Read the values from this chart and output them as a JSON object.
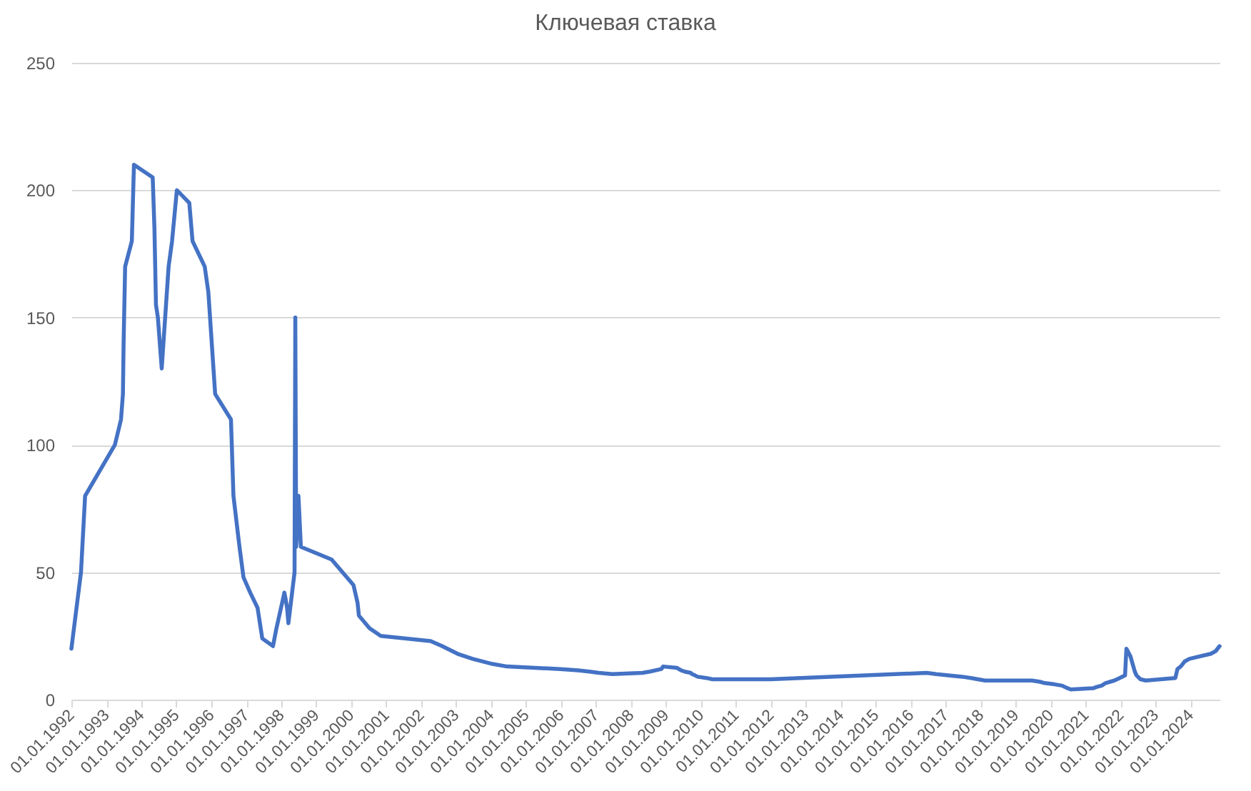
{
  "chart_data": {
    "type": "line",
    "title": "Ключевая ставка",
    "x": [
      "1992-01-01",
      "1992-04-10",
      "1992-05-23",
      "1993-03-30",
      "1993-06-02",
      "1993-06-22",
      "1993-06-29",
      "1993-07-15",
      "1993-09-23",
      "1993-10-15",
      "1994-04-29",
      "1994-05-17",
      "1994-06-02",
      "1994-06-22",
      "1994-08-01",
      "1994-10-12",
      "1994-11-17",
      "1995-01-06",
      "1995-05-16",
      "1995-06-19",
      "1995-10-24",
      "1995-12-01",
      "1996-02-10",
      "1996-07-24",
      "1996-08-19",
      "1996-10-21",
      "1996-12-02",
      "1997-02-10",
      "1997-04-28",
      "1997-06-16",
      "1997-10-06",
      "1997-11-11",
      "1998-02-02",
      "1998-02-17",
      "1998-03-02",
      "1998-03-16",
      "1998-05-19",
      "1998-05-27",
      "1998-06-05",
      "1998-06-29",
      "1998-07-24",
      "1999-06-10",
      "2000-01-24",
      "2000-03-07",
      "2000-03-21",
      "2000-07-10",
      "2000-11-04",
      "2002-04-09",
      "2002-08-07",
      "2003-01-15",
      "2003-06-21",
      "2004-01-15",
      "2004-06-15",
      "2005-12-26",
      "2006-06-26",
      "2006-10-23",
      "2007-01-29",
      "2007-06-19",
      "2008-04-29",
      "2008-07-14",
      "2008-11-12",
      "2008-12-01",
      "2009-04-24",
      "2009-05-14",
      "2009-06-05",
      "2009-07-13",
      "2009-09-15",
      "2009-09-30",
      "2009-10-30",
      "2009-11-25",
      "2010-02-24",
      "2010-04-30",
      "2011-12-26",
      "2016-06-14",
      "2016-09-19",
      "2017-06-19",
      "2017-09-18",
      "2018-02-12",
      "2019-06-17",
      "2019-09-09",
      "2019-10-28",
      "2020-02-10",
      "2020-04-27",
      "2020-06-22",
      "2020-07-27",
      "2021-03-22",
      "2021-04-26",
      "2021-06-15",
      "2021-07-26",
      "2021-10-25",
      "2021-12-20",
      "2022-02-14",
      "2022-02-28",
      "2022-04-11",
      "2022-05-04",
      "2022-05-27",
      "2022-06-14",
      "2022-07-25",
      "2022-09-19",
      "2023-07-24",
      "2023-08-15",
      "2023-09-18",
      "2023-10-30",
      "2023-12-18",
      "2024-07-29",
      "2024-09-16",
      "2024-10-28"
    ],
    "series": [
      {
        "color": "#4472c4",
        "values": [
          20,
          50,
          80,
          100,
          110,
          120,
          140,
          170,
          180,
          210,
          205,
          185,
          155,
          150,
          130,
          170,
          180,
          200,
          195,
          180,
          170,
          160,
          120,
          110,
          80,
          60,
          48,
          42,
          36,
          24,
          21,
          28,
          42,
          39,
          36,
          30,
          50,
          150,
          60,
          80,
          60,
          55,
          45,
          38,
          33,
          28,
          25,
          23,
          21,
          18,
          16,
          14,
          13,
          12,
          11.5,
          11,
          10.5,
          10,
          10.5,
          11,
          12,
          13,
          12.5,
          12,
          11.5,
          11,
          10.5,
          10,
          9.5,
          9,
          8.5,
          8,
          8,
          10.5,
          10,
          9,
          8.5,
          7.5,
          7.5,
          7,
          6.5,
          6,
          5.5,
          4.5,
          4,
          4.5,
          5,
          5.5,
          6.5,
          7.5,
          8.5,
          9.5,
          20,
          17,
          14,
          11,
          9.5,
          8,
          7.5,
          8.5,
          12,
          13,
          15,
          16,
          18,
          19,
          21
        ]
      }
    ],
    "xlim": [
      "1992-01-01",
      "2024-10-28"
    ],
    "xticks": [
      {
        "value": "1992-01-01",
        "label": "01.01.1992"
      },
      {
        "value": "1993-01-01",
        "label": "01.01.1993"
      },
      {
        "value": "1994-01-01",
        "label": "01.01.1994"
      },
      {
        "value": "1995-01-01",
        "label": "01.01.1995"
      },
      {
        "value": "1996-01-01",
        "label": "01.01.1996"
      },
      {
        "value": "1997-01-01",
        "label": "01.01.1997"
      },
      {
        "value": "1998-01-01",
        "label": "01.01.1998"
      },
      {
        "value": "1999-01-01",
        "label": "01.01.1999"
      },
      {
        "value": "2000-01-01",
        "label": "01.01.2000"
      },
      {
        "value": "2001-01-01",
        "label": "01.01.2001"
      },
      {
        "value": "2002-01-01",
        "label": "01.01.2002"
      },
      {
        "value": "2003-01-01",
        "label": "01.01.2003"
      },
      {
        "value": "2004-01-01",
        "label": "01.01.2004"
      },
      {
        "value": "2005-01-01",
        "label": "01.01.2005"
      },
      {
        "value": "2006-01-01",
        "label": "01.01.2006"
      },
      {
        "value": "2007-01-01",
        "label": "01.01.2007"
      },
      {
        "value": "2008-01-01",
        "label": "01.01.2008"
      },
      {
        "value": "2009-01-01",
        "label": "01.01.2009"
      },
      {
        "value": "2010-01-01",
        "label": "01.01.2010"
      },
      {
        "value": "2011-01-01",
        "label": "01.01.2011"
      },
      {
        "value": "2012-01-01",
        "label": "01.01.2012"
      },
      {
        "value": "2013-01-01",
        "label": "01.01.2013"
      },
      {
        "value": "2014-01-01",
        "label": "01.01.2014"
      },
      {
        "value": "2015-01-01",
        "label": "01.01.2015"
      },
      {
        "value": "2016-01-01",
        "label": "01.01.2016"
      },
      {
        "value": "2017-01-01",
        "label": "01.01.2017"
      },
      {
        "value": "2018-01-01",
        "label": "01.01.2018"
      },
      {
        "value": "2019-01-01",
        "label": "01.01.2019"
      },
      {
        "value": "2020-01-01",
        "label": "01.01.2020"
      },
      {
        "value": "2021-01-01",
        "label": "01.01.2021"
      },
      {
        "value": "2022-01-01",
        "label": "01.01.2022"
      },
      {
        "value": "2023-01-01",
        "label": "01.01.2023"
      },
      {
        "value": "2024-01-01",
        "label": "01.01.2024"
      }
    ],
    "ylim": [
      0,
      250
    ],
    "yticks": [
      0,
      50,
      100,
      150,
      200,
      250
    ],
    "grid": "y"
  }
}
